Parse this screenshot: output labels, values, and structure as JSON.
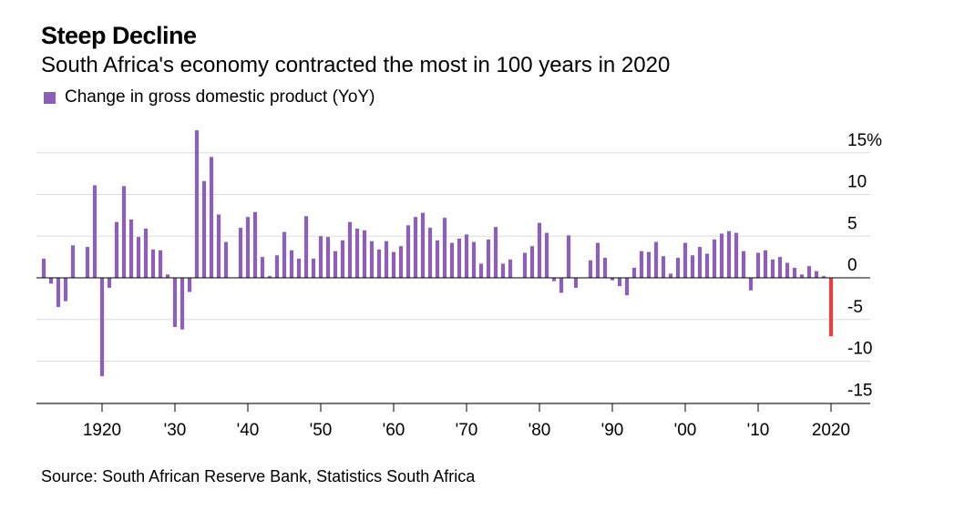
{
  "title": "Steep Decline",
  "subtitle": "South Africa's economy contracted the most in 100 years in 2020",
  "legend": {
    "label": "Change in gross domestic product (YoY)"
  },
  "source": "Source: South African Reserve Bank, Statistics South Africa",
  "colors": {
    "bar": "#8c5fb8",
    "highlight": "#e84040",
    "grid": "#dcdcdc",
    "zero_line": "#000000"
  },
  "chart_data": {
    "type": "bar",
    "title": "Steep Decline",
    "subtitle": "South Africa's economy contracted the most in 100 years in 2020",
    "series": [
      {
        "name": "Change in gross domestic product (YoY)",
        "x": [
          1912,
          1913,
          1914,
          1915,
          1916,
          1917,
          1918,
          1919,
          1920,
          1921,
          1922,
          1923,
          1924,
          1925,
          1926,
          1927,
          1928,
          1929,
          1930,
          1931,
          1932,
          1933,
          1934,
          1935,
          1936,
          1937,
          1938,
          1939,
          1940,
          1941,
          1942,
          1943,
          1944,
          1945,
          1946,
          1947,
          1948,
          1949,
          1950,
          1951,
          1952,
          1953,
          1954,
          1955,
          1956,
          1957,
          1958,
          1959,
          1960,
          1961,
          1962,
          1963,
          1964,
          1965,
          1966,
          1967,
          1968,
          1969,
          1970,
          1971,
          1972,
          1973,
          1974,
          1975,
          1976,
          1977,
          1978,
          1979,
          1980,
          1981,
          1982,
          1983,
          1984,
          1985,
          1986,
          1987,
          1988,
          1989,
          1990,
          1991,
          1992,
          1993,
          1994,
          1995,
          1996,
          1997,
          1998,
          1999,
          2000,
          2001,
          2002,
          2003,
          2004,
          2005,
          2006,
          2007,
          2008,
          2009,
          2010,
          2011,
          2012,
          2013,
          2014,
          2015,
          2016,
          2017,
          2018,
          2019,
          2020
        ],
        "values": [
          2.3,
          -0.7,
          -3.5,
          -2.8,
          3.9,
          0,
          3.7,
          11.1,
          -11.8,
          -1.2,
          6.7,
          11.0,
          7.0,
          4.9,
          5.9,
          3.4,
          3.3,
          0.4,
          -5.9,
          -6.2,
          -1.7,
          17.7,
          11.6,
          14.5,
          7.6,
          4.3,
          0,
          6.0,
          7.3,
          7.9,
          2.5,
          0.2,
          2.7,
          5.5,
          3.3,
          2.3,
          7.4,
          2.3,
          5.0,
          4.9,
          3.2,
          4.5,
          6.7,
          5.9,
          5.7,
          4.4,
          3.4,
          4.4,
          3.1,
          3.8,
          6.3,
          7.3,
          7.8,
          6.0,
          4.5,
          7.2,
          4.2,
          4.7,
          5.2,
          4.3,
          1.7,
          4.6,
          6.1,
          1.7,
          2.2,
          0,
          3.0,
          3.8,
          6.6,
          5.4,
          -0.4,
          -1.8,
          5.1,
          -1.2,
          0,
          2.1,
          4.2,
          2.4,
          -0.3,
          -1.0,
          -2.1,
          1.2,
          3.2,
          3.1,
          4.3,
          2.6,
          0.5,
          2.4,
          4.2,
          2.7,
          3.7,
          2.9,
          4.6,
          5.3,
          5.6,
          5.4,
          3.2,
          -1.5,
          3.0,
          3.3,
          2.2,
          2.5,
          1.8,
          1.2,
          0.4,
          1.4,
          0.8,
          0.2,
          -7.0
        ]
      }
    ],
    "highlight_x": 2020,
    "xlim": [
      1912,
      2020
    ],
    "ylim": [
      -15,
      17.7
    ],
    "x_ticks": [
      1920,
      1930,
      1940,
      1950,
      1960,
      1970,
      1980,
      1990,
      2000,
      2010,
      2020
    ],
    "x_tick_labels": [
      "1920",
      "'30",
      "'40",
      "'50",
      "'60",
      "'70",
      "'80",
      "'90",
      "'00",
      "'10",
      "2020"
    ],
    "y_ticks": [
      15,
      10,
      5,
      0,
      -5,
      -10,
      -15
    ],
    "y_tick_labels": [
      "15%",
      "10",
      "5",
      "0",
      "-5",
      "-10",
      "-15"
    ],
    "y_axis_position": "right",
    "grid": true
  }
}
